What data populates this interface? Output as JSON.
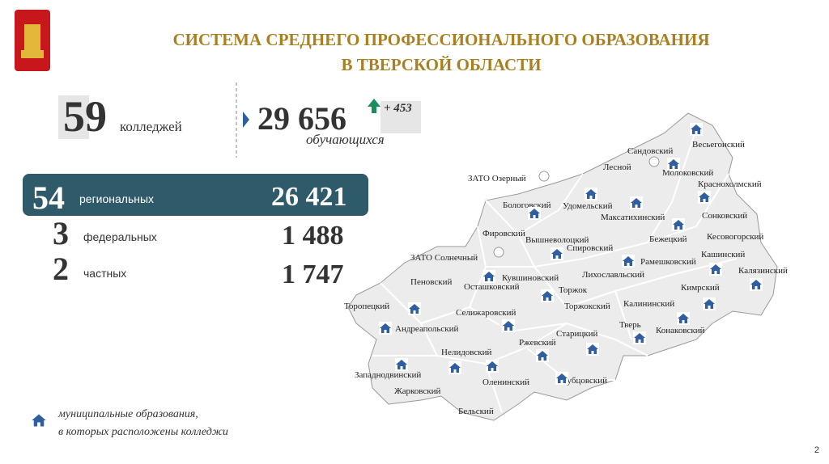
{
  "header": {
    "title_lines": [
      "СИСТЕМА СРЕДНЕГО ПРОФЕССИОНАЛЬНОГО ОБРАЗОВАНИЯ",
      "В ТВЕРСКОЙ ОБЛАСТИ"
    ]
  },
  "stats": {
    "colleges": {
      "value": "59",
      "label": "колледжей"
    },
    "students": {
      "value": "29 656",
      "change": "+ 453",
      "label": "обучающихся"
    },
    "breakdown": [
      {
        "count": "54",
        "label": "региональных",
        "students": "26 421"
      },
      {
        "count": "3",
        "label": "федеральных",
        "students": "1 488"
      },
      {
        "count": "2",
        "label": "частных",
        "students": "1 747"
      }
    ]
  },
  "map": {
    "regions": [
      "Весьегонский",
      "Сандовский",
      "Лесной",
      "Молоковский",
      "ЗАТО Озерный",
      "Краснохолмский",
      "Бологовский",
      "Удомельский",
      "Максатихинский",
      "Сонковский",
      "Фировский",
      "Кесовогорский",
      "Вышневолоцкий",
      "Бежецкий",
      "Спировский",
      "Кашинский",
      "ЗАТО Солнечный",
      "Рамешковский",
      "Калязинский",
      "Кувшиновский",
      "Лихославльский",
      "Пеновский",
      "Осташковский",
      "Кимрский",
      "Торжок",
      "Торопецкий",
      "Калининский",
      "Торжокский",
      "Селижаровский",
      "Тверь",
      "Андреапольский",
      "Конаковский",
      "Старицкий",
      "Ржевский",
      "Нелидовский",
      "Западнодвинский",
      "Оленинский",
      "Зубцовский",
      "Жарковский",
      "Бельский"
    ]
  },
  "legend": {
    "lines": [
      "муниципальные образования,",
      "в которых расположены колледжи"
    ]
  },
  "page_number": "2"
}
